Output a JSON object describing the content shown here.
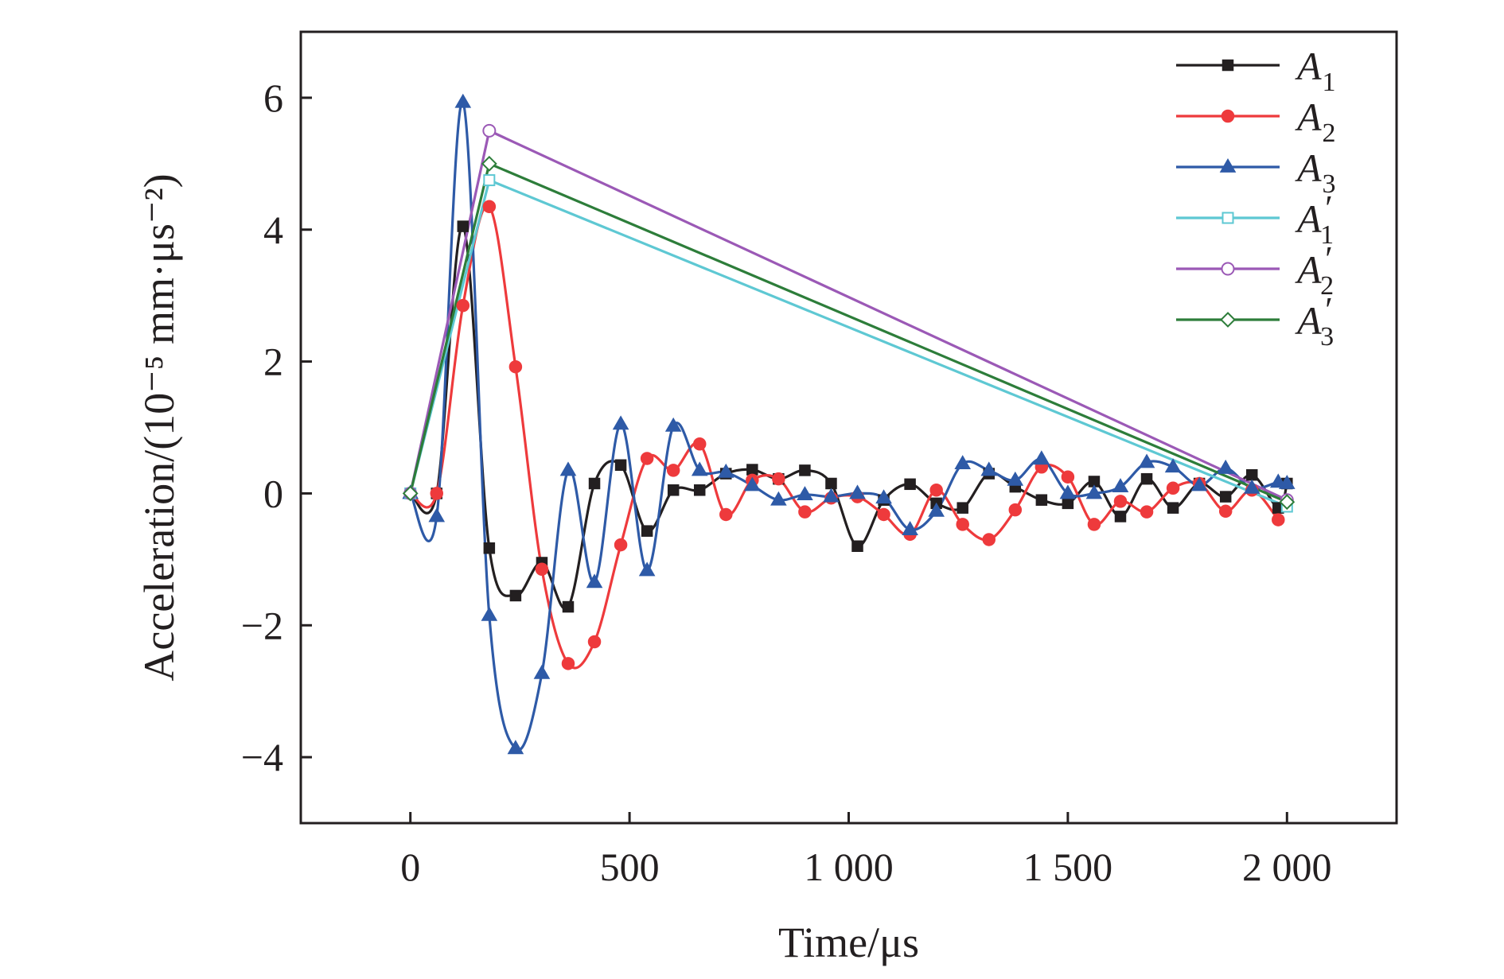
{
  "chart_data": {
    "type": "line",
    "xlabel": "Time/μs",
    "ylabel": "Acceleration/(10⁻⁵ mm·μs⁻²)",
    "xlim": [
      -250,
      2250
    ],
    "ylim": [
      -5,
      7
    ],
    "xticks": [
      0,
      500,
      1000,
      1500,
      2000
    ],
    "xtick_labels": [
      "0",
      "500",
      "1 000",
      "1 500",
      "2 000"
    ],
    "yticks": [
      -4,
      -2,
      0,
      2,
      4,
      6
    ],
    "ytick_labels": [
      "−4",
      "−2",
      "0",
      "2",
      "4",
      "6"
    ],
    "grid": false,
    "legend_position": "top-right",
    "series": [
      {
        "name": "A1",
        "label_main": "A",
        "label_sub": "1",
        "label_prime": "",
        "color": "#231f20",
        "marker": "square-filled",
        "smooth": true,
        "x": [
          0,
          60,
          120,
          180,
          240,
          300,
          360,
          420,
          480,
          540,
          600,
          660,
          720,
          780,
          840,
          900,
          960,
          1020,
          1080,
          1140,
          1200,
          1260,
          1320,
          1380,
          1440,
          1500,
          1560,
          1620,
          1680,
          1740,
          1800,
          1860,
          1920,
          1980,
          2000
        ],
        "y": [
          0,
          0,
          4.05,
          -0.83,
          -1.55,
          -1.05,
          -1.72,
          0.15,
          0.43,
          -0.57,
          0.05,
          0.05,
          0.3,
          0.36,
          0.22,
          0.35,
          0.15,
          -0.8,
          -0.1,
          0.14,
          -0.15,
          -0.22,
          0.3,
          0.1,
          -0.1,
          -0.15,
          0.18,
          -0.35,
          0.22,
          -0.22,
          0.15,
          -0.05,
          0.28,
          -0.22,
          0.15
        ]
      },
      {
        "name": "A2",
        "label_main": "A",
        "label_sub": "2",
        "label_prime": "",
        "color": "#ee3a3c",
        "marker": "circle-filled",
        "smooth": true,
        "x": [
          0,
          60,
          120,
          180,
          240,
          300,
          360,
          420,
          480,
          540,
          600,
          660,
          720,
          780,
          840,
          900,
          960,
          1020,
          1080,
          1140,
          1200,
          1260,
          1320,
          1380,
          1440,
          1500,
          1560,
          1620,
          1680,
          1740,
          1800,
          1860,
          1920,
          1980
        ],
        "y": [
          0,
          0,
          2.85,
          4.35,
          1.92,
          -1.15,
          -2.58,
          -2.25,
          -0.78,
          0.53,
          0.35,
          0.75,
          -0.32,
          0.2,
          0.22,
          -0.28,
          -0.07,
          -0.05,
          -0.32,
          -0.62,
          0.05,
          -0.47,
          -0.7,
          -0.25,
          0.4,
          0.25,
          -0.47,
          -0.12,
          -0.28,
          0.08,
          0.15,
          -0.27,
          0.05,
          -0.4
        ]
      },
      {
        "name": "A3",
        "label_main": "A",
        "label_sub": "3",
        "label_prime": "",
        "color": "#2e5aa7",
        "marker": "triangle-filled",
        "smooth": true,
        "x": [
          0,
          60,
          120,
          180,
          240,
          300,
          360,
          420,
          480,
          540,
          600,
          660,
          720,
          780,
          840,
          900,
          960,
          1020,
          1080,
          1140,
          1200,
          1260,
          1320,
          1380,
          1440,
          1500,
          1560,
          1620,
          1680,
          1740,
          1800,
          1860,
          1920,
          1980,
          2000
        ],
        "y": [
          0,
          -0.35,
          5.93,
          -1.85,
          -3.87,
          -2.73,
          0.35,
          -1.35,
          1.05,
          -1.17,
          1.02,
          0.35,
          0.32,
          0.12,
          -0.1,
          -0.02,
          -0.05,
          0.0,
          -0.07,
          -0.55,
          -0.27,
          0.45,
          0.35,
          0.2,
          0.52,
          0.0,
          0.0,
          0.1,
          0.47,
          0.4,
          0.12,
          0.38,
          0.08,
          0.17,
          0.15
        ]
      },
      {
        "name": "A1′",
        "label_main": "A",
        "label_sub": "1",
        "label_prime": "′",
        "color": "#5ec8d3",
        "marker": "square-open",
        "smooth": false,
        "x": [
          0,
          180,
          2000
        ],
        "y": [
          0,
          4.75,
          -0.2
        ]
      },
      {
        "name": "A2′",
        "label_main": "A",
        "label_sub": "2",
        "label_prime": "′",
        "color": "#9b59b6",
        "marker": "circle-open",
        "smooth": false,
        "x": [
          0,
          180,
          2000
        ],
        "y": [
          0,
          5.5,
          -0.1
        ]
      },
      {
        "name": "A3′",
        "label_main": "A",
        "label_sub": "3",
        "label_prime": "′",
        "color": "#2d7d3a",
        "marker": "diamond-open",
        "smooth": false,
        "x": [
          0,
          180,
          2000
        ],
        "y": [
          0,
          5.0,
          -0.13
        ]
      }
    ]
  }
}
